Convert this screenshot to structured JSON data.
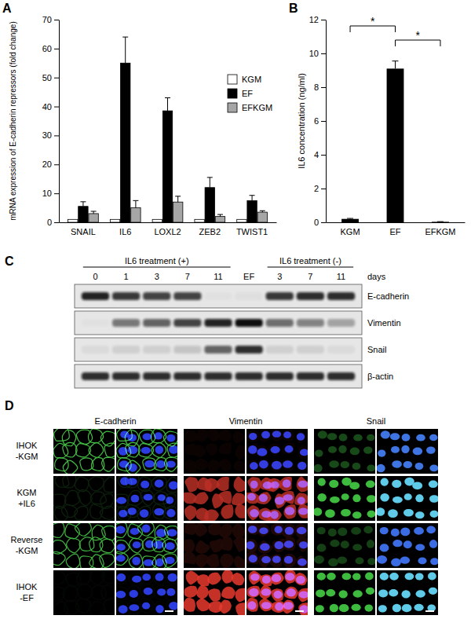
{
  "chart_data": [
    {
      "panel": "A",
      "type": "bar",
      "y_label": "mRNA expression of E-cadherin repressors (fold change)",
      "categories": [
        "SNAIL",
        "IL6",
        "LOXL2",
        "ZEB2",
        "TWIST1"
      ],
      "series": [
        {
          "name": "KGM",
          "color": "#ffffff",
          "values": [
            1,
            1,
            1,
            1,
            1
          ]
        },
        {
          "name": "EF",
          "color": "#000000",
          "values": [
            5.5,
            55,
            38.5,
            12,
            7.5
          ],
          "errors": [
            1.6,
            9,
            4.5,
            3.5,
            1.8
          ]
        },
        {
          "name": "EFKGM",
          "color": "#a6a6a6",
          "values": [
            3,
            5,
            7,
            2,
            3.5
          ],
          "errors": [
            0.8,
            2.5,
            2,
            0.7,
            0.5
          ]
        }
      ],
      "ylim": [
        0,
        70
      ],
      "yticks": [
        0,
        10,
        20,
        30,
        40,
        50,
        60,
        70
      ],
      "legend": "upper right"
    },
    {
      "panel": "B",
      "type": "bar",
      "y_label": "IL6 concentration (ng/ml)",
      "categories": [
        "KGM",
        "EF",
        "EFKGM"
      ],
      "values": [
        0.2,
        9.1,
        0.03
      ],
      "errors": [
        0.03,
        0.45,
        0.01
      ],
      "color": "#000000",
      "ylim": [
        0,
        12
      ],
      "yticks": [
        0,
        2,
        4,
        6,
        8,
        10,
        12
      ],
      "annotations": [
        {
          "text": "*",
          "between": [
            "KGM",
            "EF"
          ]
        },
        {
          "text": "*",
          "between": [
            "EF",
            "EFKGM"
          ]
        }
      ]
    },
    {
      "panel": "C",
      "type": "western_blot",
      "groups": [
        {
          "label": "IL6 treatment (+)",
          "lanes": [
            0,
            1,
            3,
            7,
            11
          ]
        },
        {
          "lanes": [
            "EF"
          ]
        },
        {
          "label": "IL6 treatment (-)",
          "lanes": [
            3,
            7,
            11
          ]
        }
      ],
      "unit_label": "days",
      "rows": [
        {
          "name": "E-cadherin",
          "intensity": [
            0.9,
            0.8,
            0.75,
            0.75,
            0.02,
            0.03,
            0.8,
            0.85,
            0.85
          ]
        },
        {
          "name": "Vimentin",
          "intensity": [
            0.02,
            0.5,
            0.6,
            0.75,
            0.9,
            1.0,
            0.55,
            0.45,
            0.3
          ]
        },
        {
          "name": "Snail",
          "intensity": [
            0.05,
            0.1,
            0.1,
            0.15,
            0.6,
            0.85,
            0.1,
            0.1,
            0.05
          ]
        },
        {
          "name": "β-actin",
          "intensity": [
            0.85,
            0.85,
            0.85,
            0.85,
            0.85,
            0.85,
            0.85,
            0.85,
            0.85
          ]
        }
      ]
    },
    {
      "panel": "D",
      "type": "micrograph_grid",
      "columns": [
        "E-cadherin",
        "Vimentin",
        "Snail"
      ],
      "colors": [
        "#4cd24c",
        "#e83a2e",
        "#44d044"
      ],
      "rows": [
        {
          "label_lines": [
            "IHOK",
            "-KGM"
          ],
          "signal": [
            0.9,
            0.05,
            0.35
          ]
        },
        {
          "label_lines": [
            "KGM",
            "+IL6"
          ],
          "signal": [
            0.15,
            0.8,
            0.9
          ]
        },
        {
          "label_lines": [
            "Reverse",
            "-KGM"
          ],
          "signal": [
            0.85,
            0.15,
            0.3
          ]
        },
        {
          "label_lines": [
            "IHOK",
            "-EF"
          ],
          "signal": [
            0.03,
            1.0,
            0.9
          ]
        }
      ]
    }
  ]
}
